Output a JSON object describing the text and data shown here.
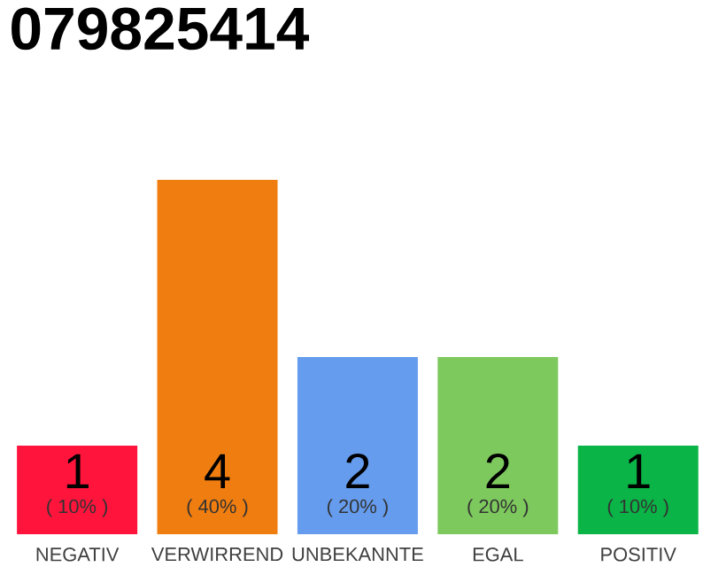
{
  "chart_data": {
    "type": "bar",
    "title": "079825414",
    "categories": [
      "NEGATIV",
      "VERWIRREND",
      "UNBEKANNTE",
      "EGAL",
      "POSITIV"
    ],
    "values": [
      1,
      4,
      2,
      2,
      1
    ],
    "colors": [
      "#ff143c",
      "#f07d0f",
      "#659ced",
      "#7dc95e",
      "#0ab446"
    ],
    "value_labels": [
      "1",
      "4",
      "2",
      "2",
      "1"
    ],
    "annotations": [
      "( 10% )",
      "( 40% )",
      "( 20% )",
      "( 20% )",
      "( 10% )"
    ],
    "grid": false
  }
}
